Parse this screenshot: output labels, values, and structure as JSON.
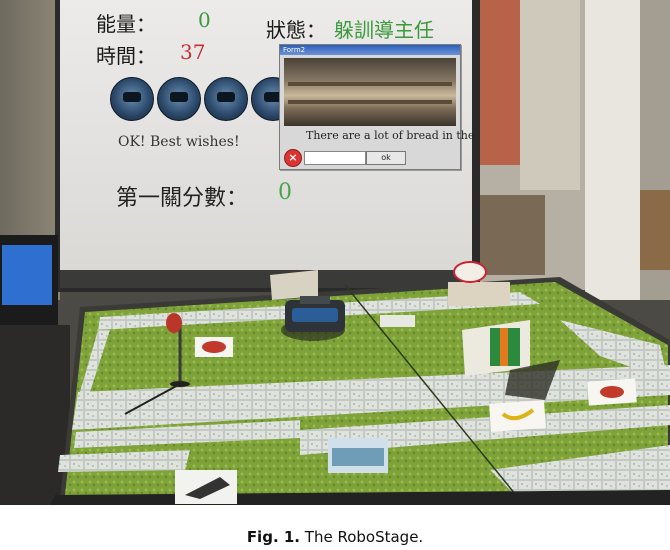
{
  "hud": {
    "energy_label": "能量：",
    "energy_value": "0",
    "time_label": "時間：",
    "time_value": "37",
    "status_label": "狀態：",
    "status_value": "躲訓導主任",
    "message": "OK! Best wishes!",
    "score_label": "第一關分數：",
    "score_value": "0"
  },
  "popup": {
    "title": "Form2",
    "text": "There are a lot of bread in the",
    "ok_label": "ok"
  },
  "caption": {
    "fig_label": "Fig. 1.",
    "text": "The RoboStage."
  },
  "colors": {
    "grass": "#7fa33a",
    "path": "#cfd4d0",
    "status_green": "#3c9a3c",
    "time_red": "#c83030"
  }
}
